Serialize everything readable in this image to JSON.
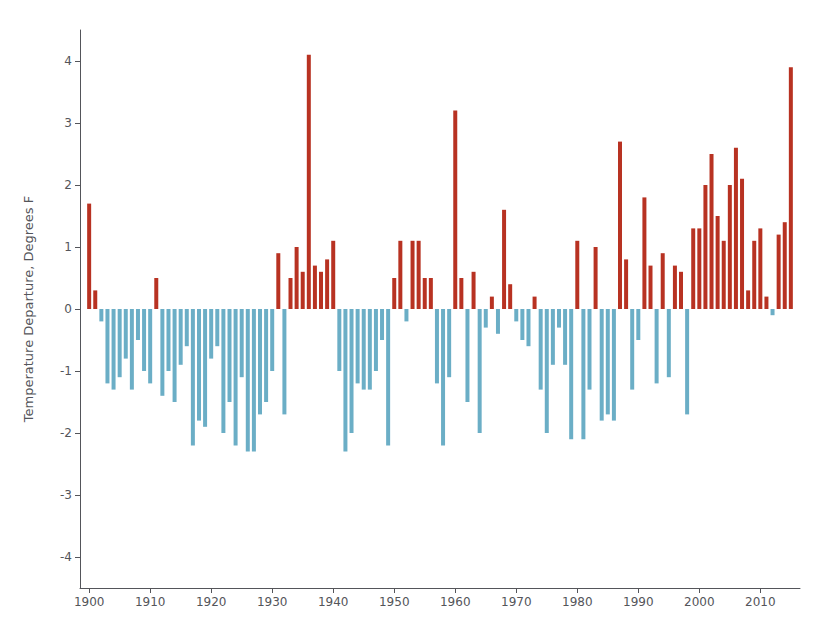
{
  "chart_data": {
    "type": "bar",
    "y_label": "Temperature Departure, Degrees F",
    "x": [
      1900,
      1901,
      1902,
      1903,
      1904,
      1905,
      1906,
      1907,
      1908,
      1909,
      1910,
      1911,
      1912,
      1913,
      1914,
      1915,
      1916,
      1917,
      1918,
      1919,
      1920,
      1921,
      1922,
      1923,
      1924,
      1925,
      1926,
      1927,
      1928,
      1929,
      1930,
      1931,
      1932,
      1933,
      1934,
      1935,
      1936,
      1937,
      1938,
      1939,
      1940,
      1941,
      1942,
      1943,
      1944,
      1945,
      1946,
      1947,
      1948,
      1949,
      1950,
      1951,
      1952,
      1953,
      1954,
      1955,
      1956,
      1957,
      1958,
      1959,
      1960,
      1961,
      1962,
      1963,
      1964,
      1965,
      1966,
      1967,
      1968,
      1969,
      1970,
      1971,
      1972,
      1973,
      1974,
      1975,
      1976,
      1977,
      1978,
      1979,
      1980,
      1981,
      1982,
      1983,
      1984,
      1985,
      1986,
      1987,
      1988,
      1989,
      1990,
      1991,
      1992,
      1993,
      1994,
      1995,
      1996,
      1997,
      1998,
      1999,
      2000,
      2001,
      2002,
      2003,
      2004,
      2005,
      2006,
      2007,
      2008,
      2009,
      2010,
      2011,
      2012,
      2013,
      2014,
      2015
    ],
    "values": [
      1.7,
      0.3,
      -0.2,
      -1.2,
      -1.3,
      -1.1,
      -0.8,
      -1.3,
      -0.5,
      -1.0,
      -1.2,
      0.5,
      -1.4,
      -1.0,
      -1.5,
      -0.9,
      -0.6,
      -2.2,
      -1.8,
      -1.9,
      -0.8,
      -0.6,
      -2.0,
      -1.5,
      -2.2,
      -1.1,
      -2.3,
      -2.3,
      -1.7,
      -1.5,
      -1.0,
      0.9,
      -1.7,
      0.5,
      1.0,
      0.6,
      4.1,
      0.7,
      0.6,
      0.8,
      1.1,
      -1.0,
      -2.3,
      -2.0,
      -1.2,
      -1.3,
      -1.3,
      -1.0,
      -0.5,
      -2.2,
      0.5,
      1.1,
      -0.2,
      1.1,
      1.1,
      0.5,
      0.5,
      -1.2,
      -2.2,
      -1.1,
      3.2,
      0.5,
      -1.5,
      0.6,
      -2.0,
      -0.3,
      0.2,
      -0.4,
      1.6,
      0.4,
      -0.2,
      -0.5,
      -0.6,
      0.2,
      -1.3,
      -2.0,
      -0.9,
      -0.3,
      -0.9,
      -2.1,
      1.1,
      -2.1,
      -1.3,
      1.0,
      -1.8,
      -1.7,
      -1.8,
      2.7,
      0.8,
      -1.3,
      -0.5,
      1.8,
      0.7,
      -1.2,
      0.9,
      -1.1,
      0.7,
      0.6,
      -1.7,
      1.3,
      1.3,
      2.0,
      2.5,
      1.5,
      1.1,
      2.0,
      2.6,
      2.1,
      0.3,
      1.1,
      1.3,
      0.2,
      -0.1,
      1.2,
      1.4,
      3.9
    ],
    "colors": [
      "#b83222",
      "#b83222",
      "#6baec6",
      "#6baec6",
      "#6baec6",
      "#6baec6",
      "#6baec6",
      "#6baec6",
      "#6baec6",
      "#6baec6",
      "#6baec6",
      "#b83222",
      "#6baec6",
      "#6baec6",
      "#6baec6",
      "#6baec6",
      "#6baec6",
      "#6baec6",
      "#6baec6",
      "#6baec6",
      "#6baec6",
      "#6baec6",
      "#6baec6",
      "#6baec6",
      "#6baec6",
      "#6baec6",
      "#6baec6",
      "#6baec6",
      "#6baec6",
      "#6baec6",
      "#6baec6",
      "#b83222",
      "#6baec6",
      "#b83222",
      "#b83222",
      "#b83222",
      "#b83222",
      "#b83222",
      "#b83222",
      "#b83222",
      "#b83222",
      "#6baec6",
      "#6baec6",
      "#6baec6",
      "#6baec6",
      "#6baec6",
      "#6baec6",
      "#6baec6",
      "#6baec6",
      "#6baec6",
      "#b83222",
      "#b83222",
      "#6baec6",
      "#b83222",
      "#b83222",
      "#b83222",
      "#b83222",
      "#6baec6",
      "#6baec6",
      "#6baec6",
      "#b83222",
      "#b83222",
      "#6baec6",
      "#b83222",
      "#6baec6",
      "#6baec6",
      "#b83222",
      "#6baec6",
      "#b83222",
      "#b83222",
      "#6baec6",
      "#6baec6",
      "#6baec6",
      "#b83222",
      "#6baec6",
      "#6baec6",
      "#6baec6",
      "#6baec6",
      "#6baec6",
      "#6baec6",
      "#b83222",
      "#6baec6",
      "#6baec6",
      "#b83222",
      "#6baec6",
      "#6baec6",
      "#6baec6",
      "#b83222",
      "#b83222",
      "#6baec6",
      "#6baec6",
      "#b83222",
      "#b83222",
      "#6baec6",
      "#b83222",
      "#6baec6",
      "#b83222",
      "#b83222",
      "#6baec6",
      "#b83222",
      "#b83222",
      "#b83222",
      "#b83222",
      "#b83222",
      "#b83222",
      "#b83222",
      "#b83222",
      "#b83222",
      "#b83222",
      "#b83222",
      "#b83222",
      "#b83222",
      "#6baec6",
      "#b83222",
      "#b83222",
      "#b83222"
    ],
    "xlim": [
      1898.5,
      2016.5
    ],
    "xticks": [
      1900,
      1910,
      1920,
      1930,
      1940,
      1950,
      1960,
      1970,
      1980,
      1990,
      2000,
      2010
    ],
    "ylim": [
      -4.5,
      4.5
    ],
    "yticks": [
      -4,
      -3,
      -2,
      -1,
      0,
      1,
      2,
      3,
      4
    ],
    "grid": false
  }
}
